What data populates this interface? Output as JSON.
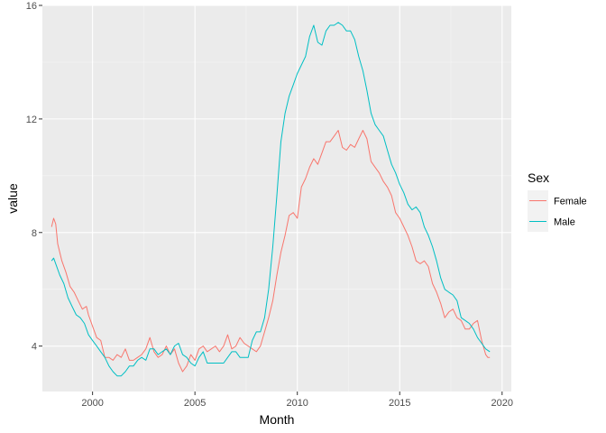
{
  "chart_data": {
    "type": "line",
    "title": "",
    "xlabel": "Month",
    "ylabel": "value",
    "xlim": [
      1997.55,
      2020.45
    ],
    "ylim": [
      2.4,
      16.0
    ],
    "x_ticks": [
      2000,
      2005,
      2010,
      2015,
      2020
    ],
    "x_tick_labels": [
      "2000",
      "2005",
      "2010",
      "2015",
      "2020"
    ],
    "y_ticks": [
      4,
      8,
      12,
      16
    ],
    "y_tick_labels": [
      "4",
      "8",
      "12",
      "16"
    ],
    "x_minor_ticks": [
      1997.5,
      2002.5,
      2007.5,
      2012.5,
      2017.5
    ],
    "y_minor_ticks": [
      6,
      10,
      14
    ],
    "grid": true,
    "background": "#EBEBEB",
    "legend": {
      "title": "Sex",
      "position": "right"
    },
    "series": [
      {
        "name": "Female",
        "color": "#F8766D",
        "points": [
          [
            1998.0,
            8.2
          ],
          [
            1998.1,
            8.5
          ],
          [
            1998.2,
            8.3
          ],
          [
            1998.3,
            7.6
          ],
          [
            1998.5,
            7.0
          ],
          [
            1998.7,
            6.6
          ],
          [
            1998.9,
            6.1
          ],
          [
            1999.1,
            5.9
          ],
          [
            1999.3,
            5.6
          ],
          [
            1999.5,
            5.3
          ],
          [
            1999.7,
            5.4
          ],
          [
            1999.8,
            5.1
          ],
          [
            2000.0,
            4.7
          ],
          [
            2000.2,
            4.3
          ],
          [
            2000.4,
            4.2
          ],
          [
            2000.6,
            3.6
          ],
          [
            2000.8,
            3.6
          ],
          [
            2001.0,
            3.5
          ],
          [
            2001.2,
            3.7
          ],
          [
            2001.4,
            3.6
          ],
          [
            2001.6,
            3.9
          ],
          [
            2001.8,
            3.5
          ],
          [
            2002.0,
            3.5
          ],
          [
            2002.2,
            3.6
          ],
          [
            2002.4,
            3.7
          ],
          [
            2002.6,
            3.9
          ],
          [
            2002.8,
            4.3
          ],
          [
            2003.0,
            3.8
          ],
          [
            2003.2,
            3.6
          ],
          [
            2003.4,
            3.7
          ],
          [
            2003.6,
            4.0
          ],
          [
            2003.8,
            3.7
          ],
          [
            2004.0,
            3.9
          ],
          [
            2004.2,
            3.4
          ],
          [
            2004.4,
            3.1
          ],
          [
            2004.6,
            3.3
          ],
          [
            2004.8,
            3.7
          ],
          [
            2005.0,
            3.5
          ],
          [
            2005.2,
            3.9
          ],
          [
            2005.4,
            4.0
          ],
          [
            2005.6,
            3.8
          ],
          [
            2005.8,
            3.9
          ],
          [
            2006.0,
            4.0
          ],
          [
            2006.2,
            3.8
          ],
          [
            2006.4,
            4.0
          ],
          [
            2006.6,
            4.4
          ],
          [
            2006.8,
            3.9
          ],
          [
            2007.0,
            4.0
          ],
          [
            2007.2,
            4.3
          ],
          [
            2007.4,
            4.1
          ],
          [
            2007.6,
            4.0
          ],
          [
            2007.8,
            3.9
          ],
          [
            2008.0,
            3.8
          ],
          [
            2008.2,
            4.0
          ],
          [
            2008.4,
            4.5
          ],
          [
            2008.6,
            5.0
          ],
          [
            2008.8,
            5.6
          ],
          [
            2009.0,
            6.5
          ],
          [
            2009.2,
            7.3
          ],
          [
            2009.4,
            7.9
          ],
          [
            2009.6,
            8.6
          ],
          [
            2009.8,
            8.7
          ],
          [
            2010.0,
            8.5
          ],
          [
            2010.2,
            9.6
          ],
          [
            2010.4,
            9.9
          ],
          [
            2010.6,
            10.3
          ],
          [
            2010.8,
            10.6
          ],
          [
            2011.0,
            10.4
          ],
          [
            2011.2,
            10.8
          ],
          [
            2011.4,
            11.2
          ],
          [
            2011.6,
            11.2
          ],
          [
            2011.8,
            11.4
          ],
          [
            2012.0,
            11.6
          ],
          [
            2012.2,
            11.0
          ],
          [
            2012.4,
            10.9
          ],
          [
            2012.6,
            11.1
          ],
          [
            2012.8,
            11.0
          ],
          [
            2013.0,
            11.3
          ],
          [
            2013.2,
            11.6
          ],
          [
            2013.4,
            11.3
          ],
          [
            2013.6,
            10.5
          ],
          [
            2013.8,
            10.3
          ],
          [
            2014.0,
            10.1
          ],
          [
            2014.2,
            9.8
          ],
          [
            2014.4,
            9.6
          ],
          [
            2014.6,
            9.3
          ],
          [
            2014.8,
            8.7
          ],
          [
            2015.0,
            8.5
          ],
          [
            2015.2,
            8.2
          ],
          [
            2015.4,
            7.9
          ],
          [
            2015.6,
            7.5
          ],
          [
            2015.8,
            7.0
          ],
          [
            2016.0,
            6.9
          ],
          [
            2016.2,
            7.0
          ],
          [
            2016.4,
            6.8
          ],
          [
            2016.6,
            6.2
          ],
          [
            2016.8,
            5.9
          ],
          [
            2017.0,
            5.5
          ],
          [
            2017.2,
            5.0
          ],
          [
            2017.4,
            5.2
          ],
          [
            2017.6,
            5.3
          ],
          [
            2017.8,
            5.0
          ],
          [
            2018.0,
            4.9
          ],
          [
            2018.2,
            4.6
          ],
          [
            2018.4,
            4.6
          ],
          [
            2018.6,
            4.8
          ],
          [
            2018.8,
            4.9
          ],
          [
            2019.0,
            4.2
          ],
          [
            2019.2,
            3.7
          ],
          [
            2019.3,
            3.6
          ],
          [
            2019.4,
            3.6
          ]
        ]
      },
      {
        "name": "Male",
        "color": "#00BFC4",
        "points": [
          [
            1998.0,
            7.0
          ],
          [
            1998.1,
            7.1
          ],
          [
            1998.2,
            6.9
          ],
          [
            1998.4,
            6.5
          ],
          [
            1998.6,
            6.2
          ],
          [
            1998.8,
            5.7
          ],
          [
            1999.0,
            5.4
          ],
          [
            1999.2,
            5.1
          ],
          [
            1999.4,
            5.0
          ],
          [
            1999.6,
            4.8
          ],
          [
            1999.8,
            4.4
          ],
          [
            2000.0,
            4.2
          ],
          [
            2000.2,
            4.0
          ],
          [
            2000.4,
            3.8
          ],
          [
            2000.6,
            3.6
          ],
          [
            2000.8,
            3.3
          ],
          [
            2001.0,
            3.1
          ],
          [
            2001.2,
            2.95
          ],
          [
            2001.4,
            2.95
          ],
          [
            2001.6,
            3.1
          ],
          [
            2001.8,
            3.3
          ],
          [
            2002.0,
            3.3
          ],
          [
            2002.2,
            3.5
          ],
          [
            2002.4,
            3.6
          ],
          [
            2002.6,
            3.5
          ],
          [
            2002.8,
            3.9
          ],
          [
            2003.0,
            3.9
          ],
          [
            2003.2,
            3.7
          ],
          [
            2003.4,
            3.8
          ],
          [
            2003.6,
            3.9
          ],
          [
            2003.8,
            3.7
          ],
          [
            2004.0,
            4.0
          ],
          [
            2004.2,
            4.1
          ],
          [
            2004.4,
            3.7
          ],
          [
            2004.6,
            3.6
          ],
          [
            2004.8,
            3.4
          ],
          [
            2005.0,
            3.3
          ],
          [
            2005.2,
            3.6
          ],
          [
            2005.4,
            3.8
          ],
          [
            2005.6,
            3.4
          ],
          [
            2005.8,
            3.4
          ],
          [
            2006.0,
            3.4
          ],
          [
            2006.2,
            3.4
          ],
          [
            2006.4,
            3.4
          ],
          [
            2006.6,
            3.6
          ],
          [
            2006.8,
            3.8
          ],
          [
            2007.0,
            3.8
          ],
          [
            2007.2,
            3.6
          ],
          [
            2007.4,
            3.6
          ],
          [
            2007.6,
            3.6
          ],
          [
            2007.8,
            4.2
          ],
          [
            2008.0,
            4.5
          ],
          [
            2008.2,
            4.5
          ],
          [
            2008.4,
            5.0
          ],
          [
            2008.6,
            6.0
          ],
          [
            2008.8,
            7.5
          ],
          [
            2009.0,
            9.3
          ],
          [
            2009.2,
            11.2
          ],
          [
            2009.4,
            12.2
          ],
          [
            2009.6,
            12.8
          ],
          [
            2009.8,
            13.2
          ],
          [
            2010.0,
            13.6
          ],
          [
            2010.2,
            13.9
          ],
          [
            2010.4,
            14.2
          ],
          [
            2010.6,
            14.9
          ],
          [
            2010.8,
            15.3
          ],
          [
            2011.0,
            14.7
          ],
          [
            2011.2,
            14.6
          ],
          [
            2011.4,
            15.1
          ],
          [
            2011.6,
            15.3
          ],
          [
            2011.8,
            15.3
          ],
          [
            2012.0,
            15.4
          ],
          [
            2012.2,
            15.3
          ],
          [
            2012.4,
            15.1
          ],
          [
            2012.6,
            15.1
          ],
          [
            2012.8,
            14.8
          ],
          [
            2013.0,
            14.2
          ],
          [
            2013.2,
            13.7
          ],
          [
            2013.4,
            13.0
          ],
          [
            2013.6,
            12.2
          ],
          [
            2013.8,
            11.8
          ],
          [
            2014.0,
            11.6
          ],
          [
            2014.2,
            11.4
          ],
          [
            2014.4,
            10.9
          ],
          [
            2014.6,
            10.4
          ],
          [
            2014.8,
            10.1
          ],
          [
            2015.0,
            9.7
          ],
          [
            2015.2,
            9.4
          ],
          [
            2015.4,
            9.0
          ],
          [
            2015.6,
            8.8
          ],
          [
            2015.8,
            8.9
          ],
          [
            2016.0,
            8.7
          ],
          [
            2016.2,
            8.2
          ],
          [
            2016.4,
            7.9
          ],
          [
            2016.6,
            7.5
          ],
          [
            2016.8,
            7.0
          ],
          [
            2017.0,
            6.4
          ],
          [
            2017.2,
            6.0
          ],
          [
            2017.4,
            5.9
          ],
          [
            2017.6,
            5.8
          ],
          [
            2017.8,
            5.6
          ],
          [
            2018.0,
            5.0
          ],
          [
            2018.2,
            4.9
          ],
          [
            2018.4,
            4.8
          ],
          [
            2018.6,
            4.6
          ],
          [
            2018.8,
            4.3
          ],
          [
            2019.0,
            4.1
          ],
          [
            2019.2,
            3.9
          ],
          [
            2019.4,
            3.8
          ]
        ]
      }
    ]
  }
}
